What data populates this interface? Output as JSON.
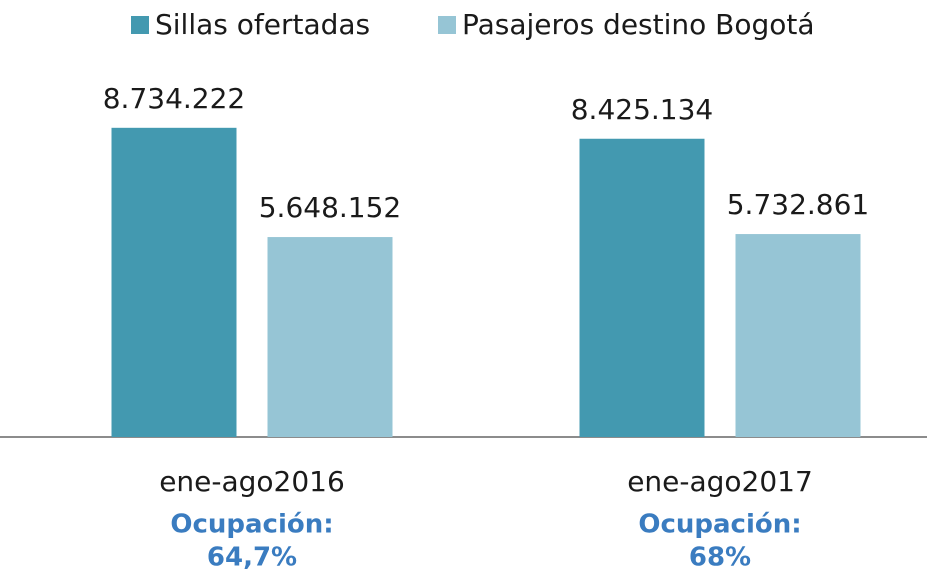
{
  "chart_data": {
    "type": "bar",
    "categories": [
      "ene-ago2016",
      "ene-ago2017"
    ],
    "series": [
      {
        "name": "Sillas ofertadas",
        "color": "#4399b0",
        "values": [
          8734222,
          8425134
        ],
        "value_labels": [
          "8.734.222",
          "8.425.134"
        ]
      },
      {
        "name": "Pasajeros destino Bogotá",
        "color": "#96c5d5",
        "values": [
          5648152,
          5732861
        ],
        "value_labels": [
          "5.648.152",
          "5.732.861"
        ]
      }
    ],
    "annotations": [
      [
        "Ocupación:",
        "64,7%"
      ],
      [
        "Ocupación:",
        "68%"
      ]
    ],
    "ylim": [
      0,
      10000000
    ],
    "legend": "top"
  }
}
